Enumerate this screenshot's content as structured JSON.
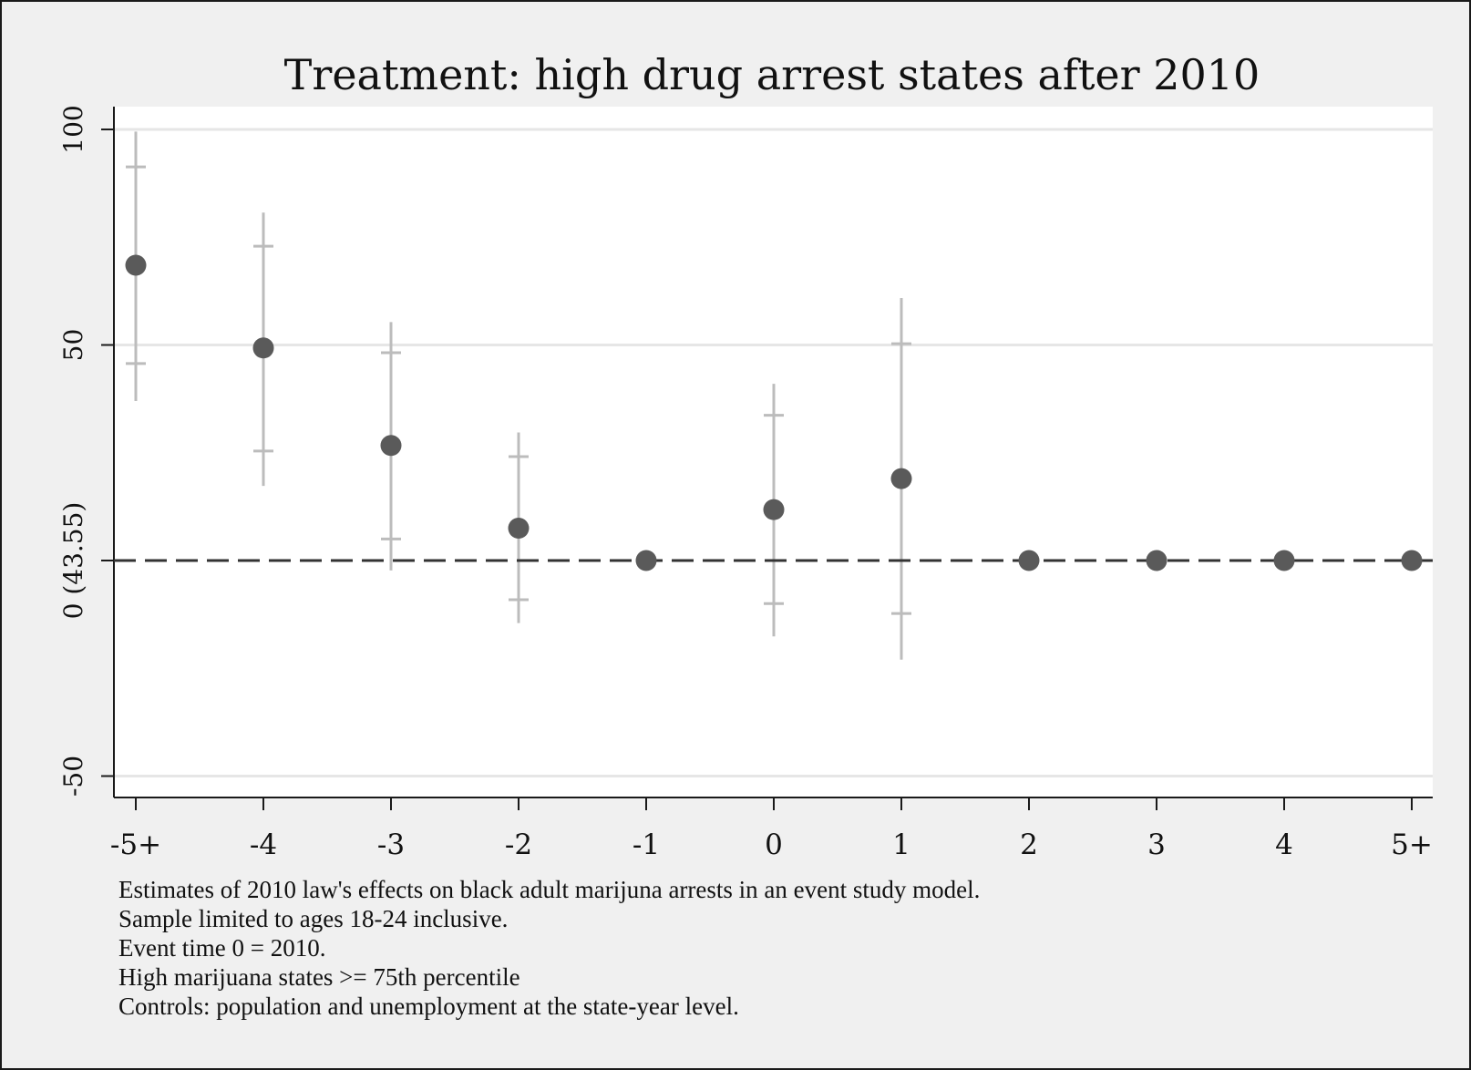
{
  "chart_data": {
    "type": "scatter",
    "title": "Treatment: high drug arrest states after 2010",
    "xlabel": "",
    "ylabel": "",
    "categories": [
      "-5+",
      "-4",
      "-3",
      "-2",
      "-1",
      "0",
      "1",
      "2",
      "3",
      "4",
      "5+"
    ],
    "yticks": [
      {
        "value": 100,
        "label": "100"
      },
      {
        "value": 50,
        "label": "50"
      },
      {
        "value": 0,
        "label": "0 (43.55)"
      },
      {
        "value": -50,
        "label": "-50"
      }
    ],
    "ylim": [
      -56,
      106
    ],
    "series": [
      {
        "point_estimates": [
          68.5,
          49.3,
          26.7,
          7.5,
          0,
          11.8,
          19.0,
          0,
          0,
          0,
          0
        ],
        "ci_inner": [
          [
            45.7,
            91.3
          ],
          [
            25.4,
            72.9
          ],
          [
            5.0,
            48.2
          ],
          [
            -9.1,
            24.1
          ],
          null,
          [
            -10.0,
            33.7
          ],
          [
            -12.3,
            50.3
          ],
          null,
          null,
          null,
          null
        ],
        "ci_outer": [
          [
            37.0,
            99.5
          ],
          [
            17.3,
            80.7
          ],
          [
            -2.3,
            55.3
          ],
          [
            -14.5,
            29.7
          ],
          null,
          [
            -17.6,
            41.0
          ],
          [
            -23.0,
            60.9
          ],
          null,
          null,
          null,
          null
        ]
      }
    ],
    "reference_line": {
      "y": 0,
      "style": "dashed"
    },
    "grid": true,
    "legend": "none",
    "colors": {
      "point": "#5a5a5a",
      "ci": "#bcbcbc",
      "grid": "#e6e6e6",
      "axis": "#1a1a1a",
      "plot_bg": "#ffffff",
      "outer_bg": "#f0f0f0"
    }
  },
  "notes": [
    "Estimates of 2010 law's effects on black adult marijuna arrests in an event study model.",
    "Sample limited to ages 18-24 inclusive.",
    "Event time 0 = 2010.",
    "High marijuana states >= 75th percentile",
    "Controls: population and unemployment at the state-year level."
  ]
}
